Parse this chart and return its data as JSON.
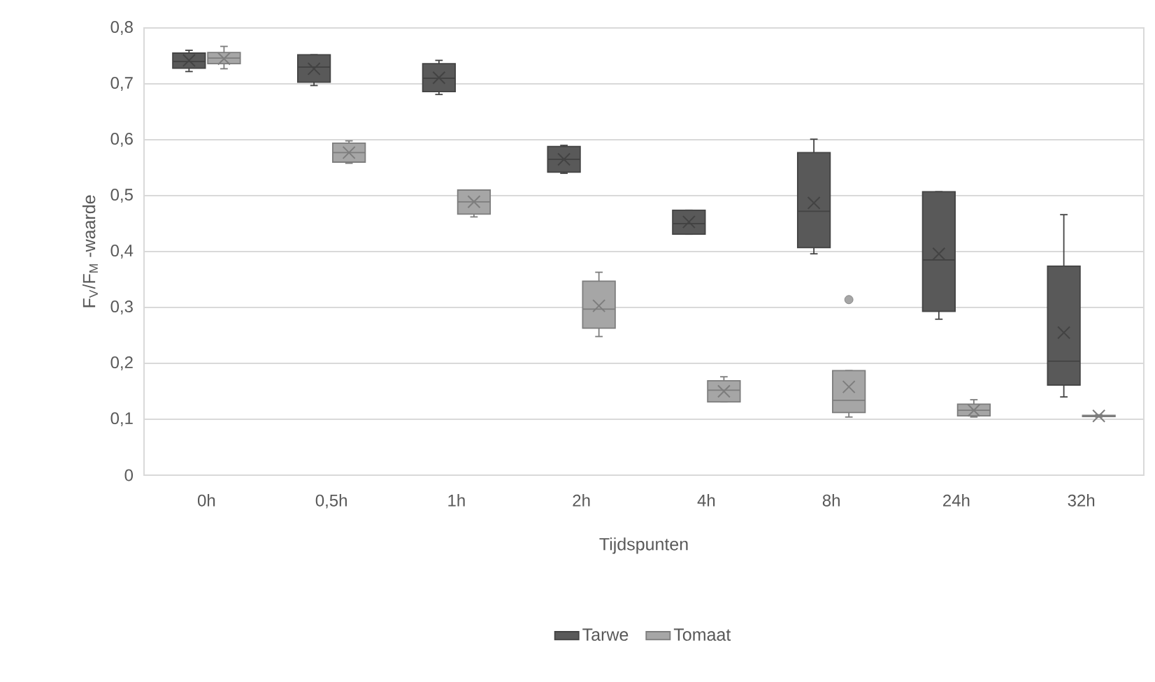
{
  "chart_data": {
    "type": "box",
    "xlabel": "Tijdspunten",
    "ylabel": "F$_{V}$/F$_{M}$ -waarde",
    "categories": [
      "0h",
      "0,5h",
      "1h",
      "2h",
      "4h",
      "8h",
      "24h",
      "32h"
    ],
    "ylim": [
      0,
      0.8
    ],
    "yticks": [
      {
        "value": 0,
        "label": "0"
      },
      {
        "value": 0.1,
        "label": "0,1"
      },
      {
        "value": 0.2,
        "label": "0,2"
      },
      {
        "value": 0.3,
        "label": "0,3"
      },
      {
        "value": 0.4,
        "label": "0,4"
      },
      {
        "value": 0.5,
        "label": "0,5"
      },
      {
        "value": 0.6,
        "label": "0,6"
      },
      {
        "value": 0.7,
        "label": "0,7"
      },
      {
        "value": 0.8,
        "label": "0,8"
      }
    ],
    "grid": "y",
    "legend": "bottom",
    "series": [
      {
        "name": "Tarwe",
        "color": "#595959",
        "boxes": [
          {
            "low": 0.722,
            "q1": 0.728,
            "median": 0.74,
            "q3": 0.755,
            "high": 0.76,
            "mean": 0.742
          },
          {
            "low": 0.697,
            "q1": 0.703,
            "median": 0.73,
            "q3": 0.752,
            "high": 0.752,
            "mean": 0.727
          },
          {
            "low": 0.681,
            "q1": 0.686,
            "median": 0.71,
            "q3": 0.736,
            "high": 0.742,
            "mean": 0.711
          },
          {
            "low": 0.54,
            "q1": 0.542,
            "median": 0.565,
            "q3": 0.588,
            "high": 0.59,
            "mean": 0.565
          },
          {
            "low": 0.431,
            "q1": 0.431,
            "median": 0.45,
            "q3": 0.474,
            "high": 0.474,
            "mean": 0.453
          },
          {
            "low": 0.396,
            "q1": 0.407,
            "median": 0.472,
            "q3": 0.577,
            "high": 0.601,
            "mean": 0.487
          },
          {
            "low": 0.279,
            "q1": 0.293,
            "median": 0.385,
            "q3": 0.507,
            "high": 0.507,
            "mean": 0.396
          },
          {
            "low": 0.14,
            "q1": 0.161,
            "median": 0.204,
            "q3": 0.374,
            "high": 0.466,
            "mean": 0.255
          }
        ]
      },
      {
        "name": "Tomaat",
        "color": "#a6a6a6",
        "boxes": [
          {
            "low": 0.727,
            "q1": 0.736,
            "median": 0.746,
            "q3": 0.756,
            "high": 0.767,
            "mean": 0.745
          },
          {
            "low": 0.558,
            "q1": 0.56,
            "median": 0.577,
            "q3": 0.594,
            "high": 0.598,
            "mean": 0.577
          },
          {
            "low": 0.462,
            "q1": 0.467,
            "median": 0.489,
            "q3": 0.51,
            "high": 0.51,
            "mean": 0.489
          },
          {
            "low": 0.248,
            "q1": 0.263,
            "median": 0.297,
            "q3": 0.347,
            "high": 0.363,
            "mean": 0.303
          },
          {
            "low": 0.131,
            "q1": 0.131,
            "median": 0.152,
            "q3": 0.169,
            "high": 0.176,
            "mean": 0.15
          },
          {
            "low": 0.104,
            "q1": 0.112,
            "median": 0.134,
            "q3": 0.187,
            "high": 0.187,
            "mean": 0.158,
            "outliers": [
              0.314
            ]
          },
          {
            "low": 0.104,
            "q1": 0.106,
            "median": 0.116,
            "q3": 0.127,
            "high": 0.135,
            "mean": 0.116
          },
          {
            "low": 0.104,
            "q1": 0.105,
            "median": 0.106,
            "q3": 0.107,
            "high": 0.108,
            "mean": 0.106
          }
        ]
      }
    ]
  }
}
